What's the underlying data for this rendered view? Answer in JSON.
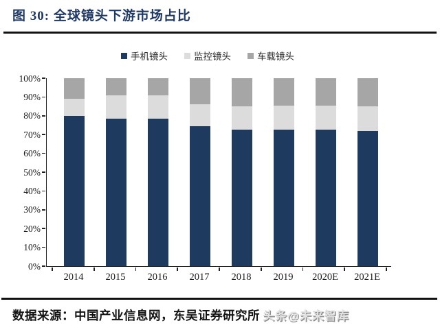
{
  "header": {
    "title": "图 30:  全球镜头下游市场占比"
  },
  "footer": {
    "source_label": "数据来源：中国产业信息网，东吴证券研究所",
    "watermark": "头条@未来智库"
  },
  "colors": {
    "title": "#1F3864",
    "axis": "#222222",
    "rule": "#121212"
  },
  "chart_data": {
    "type": "bar",
    "stacked": true,
    "title": "全球镜头下游市场占比",
    "categories": [
      "2014",
      "2015",
      "2016",
      "2017",
      "2018",
      "2019",
      "2020E",
      "2021E"
    ],
    "series": [
      {
        "name": "手机镜头",
        "color": "#1F3A5F",
        "values": [
          80,
          78.5,
          78.5,
          74.5,
          72.5,
          72.5,
          72.5,
          72
        ]
      },
      {
        "name": "监控镜头",
        "color": "#DCDCDC",
        "values": [
          9,
          12.5,
          12.5,
          11.5,
          12.5,
          13,
          13,
          13
        ]
      },
      {
        "name": "车载镜头",
        "color": "#A6A6A6",
        "values": [
          11,
          9,
          9,
          14,
          15,
          14.5,
          14.5,
          15
        ]
      }
    ],
    "ylim": [
      0,
      100
    ],
    "ytick_step": 10,
    "ytick_suffix": "%",
    "xlabel": "",
    "ylabel": "",
    "legend_position": "top-center",
    "grid": false
  }
}
